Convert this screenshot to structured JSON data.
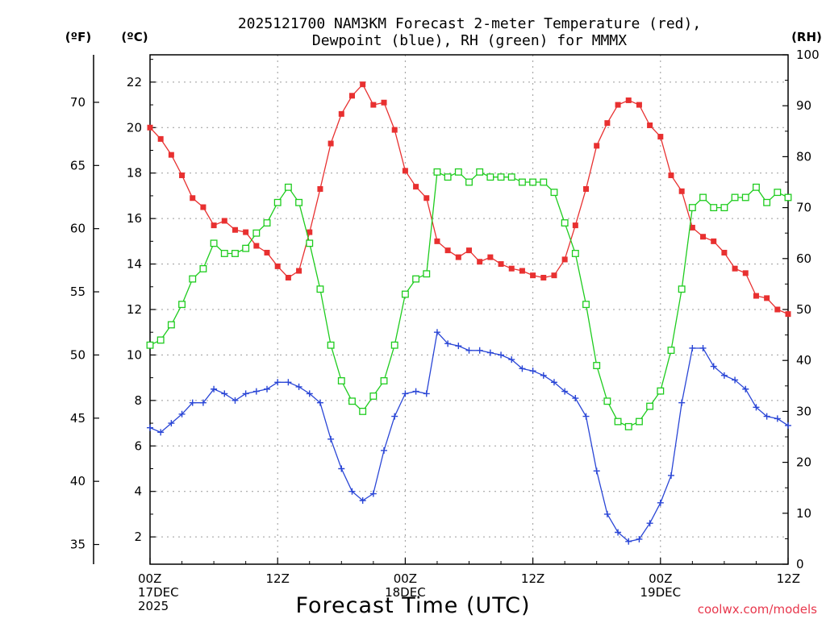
{
  "chart_data": {
    "type": "line",
    "title_line1": "2025121700 NAM3KM Forecast 2-meter Temperature (red),",
    "title_line2": "Dewpoint (blue), RH (green) for MMMX",
    "xlabel": "Forecast Time (UTC)",
    "credit": "coolwx.com/models",
    "left_outer_label": "(ºF)",
    "left_inner_label": "(ºC)",
    "right_label": "(RH)",
    "x_range_hours": [
      0,
      60
    ],
    "x_step_hours": 1,
    "ylim_c": [
      0.8,
      23.2
    ],
    "ylim_rh": [
      0,
      100
    ],
    "x_ticks": [
      {
        "hour": 0,
        "lines": [
          "00Z",
          "17DEC",
          "2025"
        ]
      },
      {
        "hour": 12,
        "lines": [
          "12Z"
        ]
      },
      {
        "hour": 24,
        "lines": [
          "00Z",
          "18DEC"
        ]
      },
      {
        "hour": 36,
        "lines": [
          "12Z"
        ]
      },
      {
        "hour": 48,
        "lines": [
          "00Z",
          "19DEC"
        ]
      },
      {
        "hour": 60,
        "lines": [
          "12Z"
        ]
      }
    ],
    "y_ticks_c": [
      "2",
      "4",
      "6",
      "8",
      "10",
      "12",
      "14",
      "16",
      "18",
      "20",
      "22"
    ],
    "y_ticks_f": [
      "35",
      "40",
      "45",
      "50",
      "55",
      "60",
      "65",
      "70"
    ],
    "y_ticks_rh": [
      "0",
      "10",
      "20",
      "30",
      "40",
      "50",
      "60",
      "70",
      "80",
      "90",
      "100"
    ],
    "series": [
      {
        "name": "Temperature",
        "unit": "C",
        "color": "#e83030",
        "marker": "filled-square",
        "values": [
          20.0,
          19.5,
          18.8,
          17.9,
          16.9,
          16.5,
          15.7,
          15.9,
          15.5,
          15.4,
          14.8,
          14.5,
          13.9,
          13.4,
          13.7,
          15.4,
          17.3,
          19.3,
          20.6,
          21.4,
          21.9,
          21.0,
          21.1,
          19.9,
          18.1,
          17.4,
          16.9,
          15.0,
          14.6,
          14.3,
          14.6,
          14.1,
          14.3,
          14.0,
          13.8,
          13.7,
          13.5,
          13.4,
          13.5,
          14.2,
          15.7,
          17.3,
          19.2,
          20.2,
          21.0,
          21.2,
          21.0,
          20.1,
          19.6,
          17.9,
          17.2,
          15.6,
          15.2,
          15.0,
          14.5,
          13.8,
          13.6,
          12.6,
          12.5,
          12.0,
          11.8
        ]
      },
      {
        "name": "Dewpoint",
        "unit": "C",
        "color": "#2a46d6",
        "marker": "plus",
        "values": [
          6.8,
          6.6,
          7.0,
          7.4,
          7.9,
          7.9,
          8.5,
          8.3,
          8.0,
          8.3,
          8.4,
          8.5,
          8.8,
          8.8,
          8.6,
          8.3,
          7.9,
          6.3,
          5.0,
          4.0,
          3.6,
          3.9,
          5.8,
          7.3,
          8.3,
          8.4,
          8.3,
          11.0,
          10.5,
          10.4,
          10.2,
          10.2,
          10.1,
          10.0,
          9.8,
          9.4,
          9.3,
          9.1,
          8.8,
          8.4,
          8.1,
          7.3,
          4.9,
          3.0,
          2.2,
          1.8,
          1.9,
          2.6,
          3.5,
          4.7,
          7.9,
          10.3,
          10.3,
          9.5,
          9.1,
          8.9,
          8.5,
          7.7,
          7.3,
          7.2,
          6.9
        ]
      },
      {
        "name": "RH",
        "unit": "%",
        "color": "#1ecc1e",
        "marker": "open-square",
        "values": [
          43,
          44,
          47,
          51,
          56,
          58,
          63,
          61,
          61,
          62,
          65,
          67,
          71,
          74,
          71,
          63,
          54,
          43,
          36,
          32,
          30,
          33,
          36,
          43,
          53,
          56,
          57,
          77,
          76,
          77,
          75,
          77,
          76,
          76,
          76,
          75,
          75,
          75,
          73,
          67,
          61,
          51,
          39,
          32,
          28,
          27,
          28,
          31,
          34,
          42,
          54,
          70,
          72,
          70,
          70,
          72,
          72,
          74,
          71,
          73,
          72
        ]
      }
    ]
  }
}
